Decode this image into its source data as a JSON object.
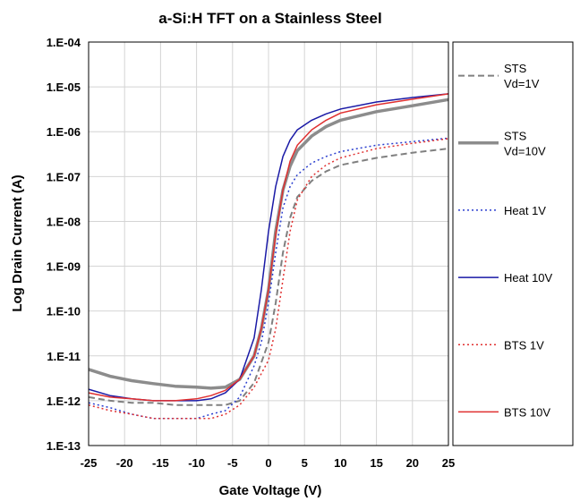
{
  "chart_data": {
    "type": "line",
    "title": "a-Si:H TFT on a Stainless Steel",
    "xlabel": "Gate Voltage (V)",
    "ylabel": "Log Drain Current (A)",
    "xlim": [
      -25,
      25
    ],
    "ylim": [
      1e-13,
      0.0001
    ],
    "yscale": "log",
    "grid": true,
    "legend_position": "right",
    "x_ticks": [
      -25,
      -20,
      -15,
      -10,
      -5,
      0,
      5,
      10,
      15,
      20,
      25
    ],
    "x_tick_labels": [
      "-25",
      "-20",
      "-15",
      "-10",
      "-5",
      "0",
      "5",
      "10",
      "15",
      "20",
      "25"
    ],
    "y_ticks": [
      1e-13,
      1e-12,
      1e-11,
      1e-10,
      1e-09,
      1e-08,
      1e-07,
      1e-06,
      1e-05,
      0.0001
    ],
    "y_tick_labels": [
      "1.E-13",
      "1.E-12",
      "1.E-11",
      "1.E-10",
      "1.E-09",
      "1.E-08",
      "1.E-07",
      "1.E-06",
      "1.E-05",
      "1.E-04"
    ],
    "series": [
      {
        "name": "STS Vd=1V",
        "label_lines": [
          "STS",
          "Vd=1V"
        ],
        "color": "#808080",
        "dash": "dashed",
        "width": 2,
        "x": [
          -25,
          -22,
          -19,
          -16,
          -13,
          -10,
          -8,
          -6,
          -4,
          -2,
          0,
          1,
          2,
          3,
          4,
          6,
          8,
          10,
          15,
          20,
          25
        ],
        "y": [
          1.2e-12,
          1e-12,
          9e-13,
          9e-13,
          8e-13,
          8e-13,
          8e-13,
          8e-13,
          1e-12,
          2.5e-12,
          2e-11,
          1.5e-10,
          2e-09,
          1.2e-08,
          3.5e-08,
          8e-08,
          1.3e-07,
          1.8e-07,
          2.6e-07,
          3.4e-07,
          4.2e-07
        ]
      },
      {
        "name": "STS Vd=10V",
        "label_lines": [
          "STS",
          "Vd=10V"
        ],
        "color": "#8c8c8c",
        "dash": "solid",
        "width": 3.5,
        "x": [
          -25,
          -22,
          -19,
          -16,
          -13,
          -10,
          -8,
          -6,
          -4,
          -2,
          -1,
          0,
          1,
          2,
          3,
          4,
          6,
          8,
          10,
          15,
          20,
          25
        ],
        "y": [
          5e-12,
          3.5e-12,
          2.8e-12,
          2.4e-12,
          2.1e-12,
          2e-12,
          1.9e-12,
          2e-12,
          3e-12,
          1e-11,
          4e-11,
          3e-10,
          6e-09,
          5e-08,
          1.7e-07,
          3.8e-07,
          8e-07,
          1.3e-06,
          1.8e-06,
          2.8e-06,
          3.8e-06,
          5.2e-06
        ]
      },
      {
        "name": "Heat 1V",
        "label_lines": [
          "Heat 1V"
        ],
        "color": "#2b3fcf",
        "dash": "dotted",
        "width": 1.5,
        "x": [
          -25,
          -22,
          -19,
          -16,
          -13,
          -10,
          -8,
          -6,
          -4,
          -2,
          -1,
          0,
          1,
          2,
          3,
          4,
          6,
          8,
          10,
          15,
          20,
          25
        ],
        "y": [
          9e-13,
          7e-13,
          5e-13,
          4e-13,
          4e-13,
          4e-13,
          5e-13,
          6e-13,
          1.2e-12,
          6e-12,
          2e-11,
          1.5e-10,
          2e-09,
          2e-08,
          6e-08,
          1.1e-07,
          2e-07,
          2.8e-07,
          3.6e-07,
          5e-07,
          6e-07,
          7.2e-07
        ]
      },
      {
        "name": "Heat 10V",
        "label_lines": [
          "Heat 10V"
        ],
        "color": "#1a1aa6",
        "dash": "solid",
        "width": 1.5,
        "x": [
          -25,
          -22,
          -19,
          -16,
          -13,
          -10,
          -8,
          -6,
          -4,
          -2,
          -1,
          0,
          1,
          2,
          3,
          4,
          6,
          8,
          10,
          15,
          20,
          25
        ],
        "y": [
          1.8e-12,
          1.3e-12,
          1.1e-12,
          1e-12,
          1e-12,
          1e-12,
          1.1e-12,
          1.5e-12,
          3e-12,
          2.5e-11,
          3e-10,
          6e-09,
          6e-08,
          2.8e-07,
          6.5e-07,
          1.1e-06,
          1.8e-06,
          2.5e-06,
          3.2e-06,
          4.6e-06,
          5.8e-06,
          7e-06
        ]
      },
      {
        "name": "BTS 1V",
        "label_lines": [
          "BTS 1V"
        ],
        "color": "#e03030",
        "dash": "dotted",
        "width": 1.5,
        "x": [
          -25,
          -22,
          -19,
          -16,
          -13,
          -10,
          -8,
          -6,
          -4,
          -2,
          0,
          1,
          2,
          3,
          4,
          6,
          8,
          10,
          15,
          20,
          25
        ],
        "y": [
          8e-13,
          6e-13,
          5e-13,
          4e-13,
          4e-13,
          4e-13,
          4e-13,
          5e-13,
          8e-13,
          2e-12,
          8e-12,
          4e-11,
          5e-10,
          6e-09,
          3e-08,
          1e-07,
          1.8e-07,
          2.6e-07,
          4.2e-07,
          5.5e-07,
          7e-07
        ]
      },
      {
        "name": "BTS 10V",
        "label_lines": [
          "BTS 10V"
        ],
        "color": "#e03030",
        "dash": "solid",
        "width": 1.5,
        "x": [
          -25,
          -22,
          -19,
          -16,
          -13,
          -10,
          -8,
          -6,
          -4,
          -2,
          -1,
          0,
          1,
          2,
          3,
          4,
          6,
          8,
          10,
          15,
          20,
          25
        ],
        "y": [
          1.5e-12,
          1.2e-12,
          1.1e-12,
          1e-12,
          1e-12,
          1.1e-12,
          1.3e-12,
          1.7e-12,
          3e-12,
          1e-11,
          4e-11,
          3e-10,
          5e-09,
          5e-08,
          2.2e-07,
          5e-07,
          1.1e-06,
          1.8e-06,
          2.6e-06,
          4e-06,
          5.3e-06,
          7e-06
        ]
      }
    ]
  }
}
